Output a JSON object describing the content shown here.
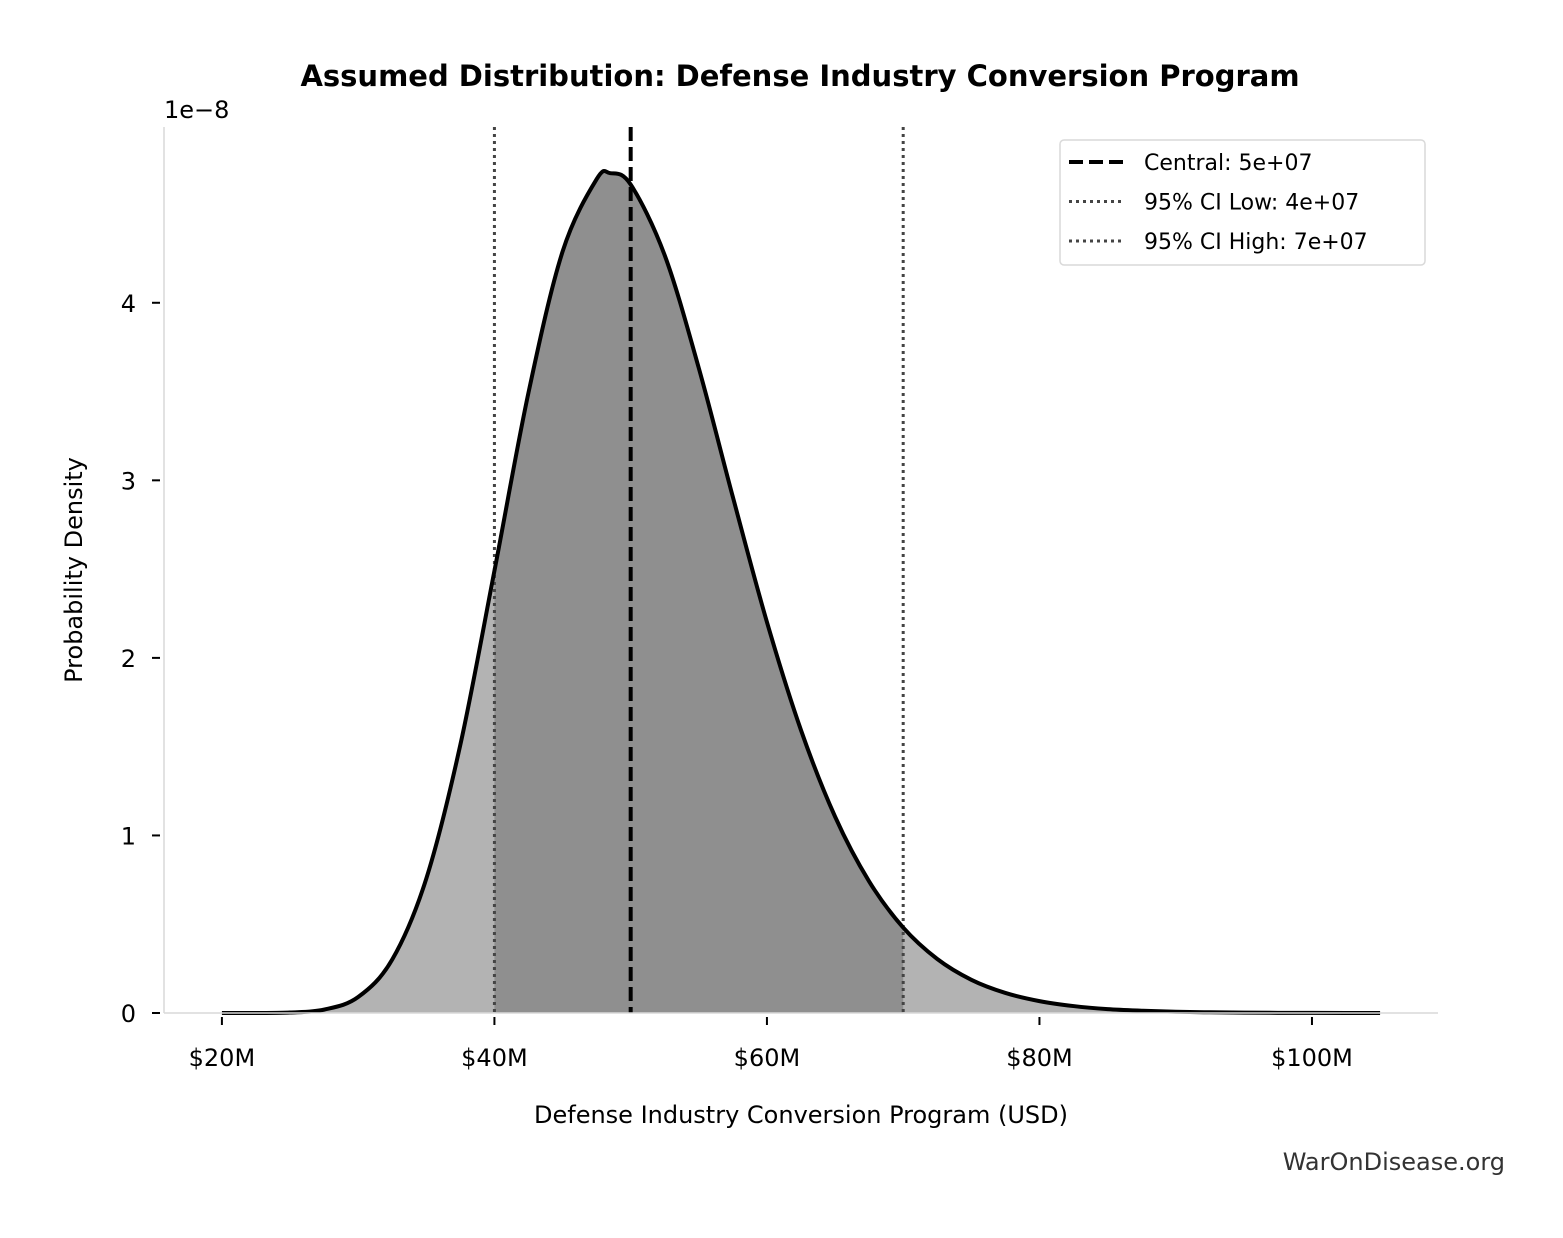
{
  "chart_data": {
    "type": "area",
    "title": "Assumed Distribution: Defense Industry Conversion Program",
    "xlabel": "Defense Industry Conversion Program (USD)",
    "ylabel": "Probability Density",
    "y_offset_label": "1e−8",
    "xlim": [
      15.75,
      109.25
    ],
    "ylim": [
      0,
      4.99
    ],
    "x_ticks": [
      20,
      40,
      60,
      80,
      100
    ],
    "x_tick_labels": [
      "$20M",
      "$40M",
      "$60M",
      "$80M",
      "$100M"
    ],
    "y_ticks": [
      0,
      1,
      2,
      3,
      4
    ],
    "y_tick_labels": [
      "0",
      "1",
      "2",
      "3",
      "4"
    ],
    "grid": false,
    "legend_placement": "top-right",
    "series": [
      {
        "x": [
          20,
          22.5,
          25,
          27.5,
          30,
          32.5,
          35,
          37.5,
          40,
          42.5,
          45,
          47.5,
          48.5,
          50,
          52.5,
          55,
          57.5,
          60,
          62.5,
          65,
          67.5,
          70,
          72.5,
          75,
          77.5,
          80,
          82.5,
          85,
          87.5,
          90,
          92.5,
          95,
          97.5,
          100,
          102.5,
          105
        ],
        "y": [
          0,
          0.0002,
          0.0025,
          0.019,
          0.09,
          0.301,
          0.757,
          1.511,
          2.49,
          3.494,
          4.288,
          4.696,
          4.73,
          4.666,
          4.267,
          3.632,
          2.906,
          2.202,
          1.593,
          1.106,
          0.741,
          0.481,
          0.304,
          0.187,
          0.113,
          0.067,
          0.039,
          0.022,
          0.013,
          0.007,
          0.004,
          0.002,
          0.001,
          0.0006,
          0.0003,
          0.0002
        ]
      }
    ],
    "shaded_interval": [
      40,
      70
    ],
    "reference_lines": [
      {
        "label": "Central: 5e+07",
        "x": 50,
        "style": "dashed",
        "color": "#000000"
      },
      {
        "label": "95% CI Low: 4e+07",
        "x": 40,
        "style": "dotted",
        "color": "#444444"
      },
      {
        "label": "95% CI High: 7e+07",
        "x": 70,
        "style": "dotted",
        "color": "#444444"
      }
    ],
    "colors": {
      "curve": "#000000",
      "tail_fill": "#b3b3b3",
      "ci_fill": "#8f8f8f",
      "spine": "#d9d9d9"
    }
  },
  "watermark": "WarOnDisease.org"
}
